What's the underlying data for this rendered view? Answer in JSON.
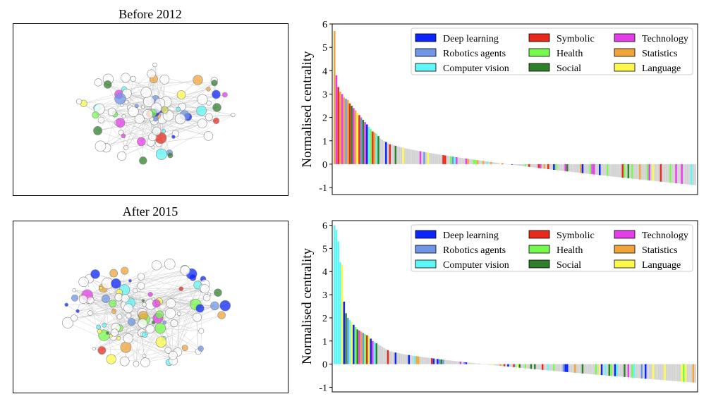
{
  "figure": {
    "panels": [
      {
        "id": "before",
        "title": "Before 2012"
      },
      {
        "id": "after",
        "title": "After 2015"
      }
    ]
  },
  "legend_entries": [
    {
      "label": "Deep learning",
      "color": "#0b24fb"
    },
    {
      "label": "Symbolic",
      "color": "#e8291c"
    },
    {
      "label": "Technology",
      "color": "#e43ee8"
    },
    {
      "label": "Robotics agents",
      "color": "#6f96e6"
    },
    {
      "label": "Health",
      "color": "#76f94d"
    },
    {
      "label": "Statistics",
      "color": "#f0a43a"
    },
    {
      "label": "Computer vision",
      "color": "#5ef6f6"
    },
    {
      "label": "Social",
      "color": "#2f7f2a"
    },
    {
      "label": "Language",
      "color": "#fdf94c"
    }
  ],
  "chart_data": [
    {
      "type": "network",
      "title": "Before 2012",
      "note": "node-link graph; node color = topic category, grey outline = uncategorised"
    },
    {
      "type": "bar",
      "ylabel": "Normalised centrality",
      "ylim": [
        -1.3,
        6
      ],
      "yticks": [
        -1,
        0,
        1,
        2,
        3,
        4,
        5,
        6
      ],
      "legend_position": "top-right",
      "grid": false,
      "n_bars": 190,
      "leading_values": [
        5.7,
        3.8,
        3.3,
        3.1,
        3.0,
        2.85,
        2.8,
        2.75,
        2.6,
        2.5,
        2.4,
        2.3,
        2.2,
        2.1,
        2.0,
        1.9,
        1.8,
        1.7,
        1.6,
        1.5,
        1.4,
        1.35,
        1.3,
        1.2,
        1.1,
        1.05,
        1.0,
        0.95,
        0.9,
        0.85
      ],
      "tail_value": -0.9,
      "highlight_colors": [
        "#f0a43a",
        "#e43ee8",
        "#e8291c",
        "#f0a43a",
        "#e43ee8",
        "#f0a43a",
        "#6f96e6",
        "#f0a43a",
        "#e8291c",
        "#2f7f2a",
        "#e43ee8",
        "#f0a43a",
        "#fdf94c",
        "#e8291c",
        "#6f96e6",
        "#2f7f2a",
        "#e43ee8",
        "#0b24fb",
        "#5ef6f6",
        "#76f94d",
        "#e8291c",
        "#f0a43a"
      ]
    },
    {
      "type": "network",
      "title": "After 2015",
      "note": "node-link graph; node color = topic category, grey outline = uncategorised"
    },
    {
      "type": "bar",
      "ylabel": "Normalised centrality",
      "ylim": [
        -1.2,
        6.2
      ],
      "yticks": [
        -1,
        0,
        1,
        2,
        3,
        4,
        5,
        6
      ],
      "legend_position": "top-right",
      "grid": false,
      "n_bars": 190,
      "leading_values": [
        6.0,
        5.8,
        5.3,
        4.4,
        4.3,
        2.7,
        2.2,
        2.0,
        1.9,
        1.8,
        1.7,
        1.6,
        1.5,
        1.45,
        1.4,
        1.35,
        1.3,
        1.25,
        1.2,
        1.1,
        1.0,
        0.95,
        0.9,
        0.85,
        0.8,
        0.75,
        0.7,
        0.65,
        0.6,
        0.55
      ],
      "tail_value": -0.8,
      "highlight_colors": [
        "#5ef6f6",
        "#5ef6f6",
        "#5ef6f6",
        "#5ef6f6",
        "#fdf94c",
        "#0b24fb",
        "#2f7f2a",
        "#6f96e6",
        "#5ef6f6",
        "#fdf94c",
        "#0b24fb",
        "#76f94d",
        "#2f7f2a",
        "#e43ee8",
        "#f0a43a",
        "#6f96e6",
        "#76f94d",
        "#e8291c",
        "#fdf94c",
        "#0b24fb",
        "#e43ee8",
        "#5ef6f6"
      ]
    }
  ]
}
